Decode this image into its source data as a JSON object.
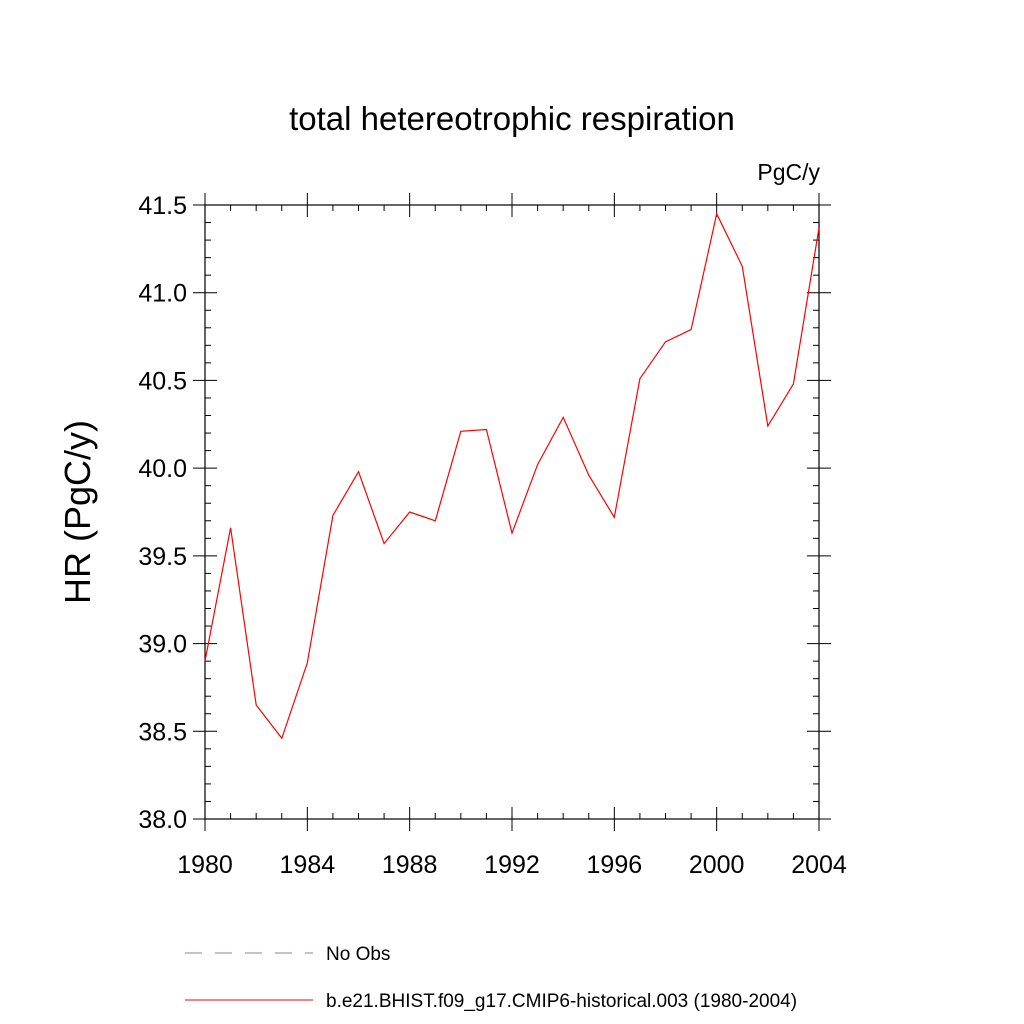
{
  "chart_data": {
    "type": "line",
    "title": "total hetereotrophic respiration",
    "units_label": "PgC/y",
    "xlabel": "",
    "ylabel": "HR  (PgC/y)",
    "xlim": [
      1980,
      2004
    ],
    "ylim": [
      38.0,
      41.5
    ],
    "x_ticks": [
      1980,
      1984,
      1988,
      1992,
      1996,
      2000,
      2004
    ],
    "y_ticks": [
      38.0,
      38.5,
      39.0,
      39.5,
      40.0,
      40.5,
      41.0,
      41.5
    ],
    "y_tick_labels": [
      "38.0",
      "38.5",
      "39.0",
      "39.5",
      "40.0",
      "40.5",
      "41.0",
      "41.5"
    ],
    "grid": false,
    "legend_position": "bottom",
    "series": [
      {
        "name": "b.e21.BHIST.f09_g17.CMIP6-historical.003 (1980-2004)",
        "color": "#ff0000",
        "style": "solid",
        "x": [
          1980,
          1981,
          1982,
          1983,
          1984,
          1985,
          1986,
          1987,
          1988,
          1989,
          1990,
          1991,
          1992,
          1993,
          1994,
          1995,
          1996,
          1997,
          1998,
          1999,
          2000,
          2001,
          2002,
          2003,
          2004
        ],
        "values": [
          38.9,
          39.66,
          38.65,
          38.46,
          38.89,
          39.73,
          39.98,
          39.57,
          39.75,
          39.7,
          40.21,
          40.22,
          39.63,
          40.02,
          40.29,
          39.96,
          39.72,
          40.51,
          40.72,
          40.79,
          41.45,
          41.15,
          40.24,
          40.48,
          41.37
        ]
      }
    ],
    "legend": [
      {
        "name": "No Obs",
        "color": "#8080c0",
        "style": "dashed"
      },
      {
        "name": "b.e21.BHIST.f09_g17.CMIP6-historical.003 (1980-2004)",
        "color": "#ff0000",
        "style": "solid"
      }
    ]
  }
}
